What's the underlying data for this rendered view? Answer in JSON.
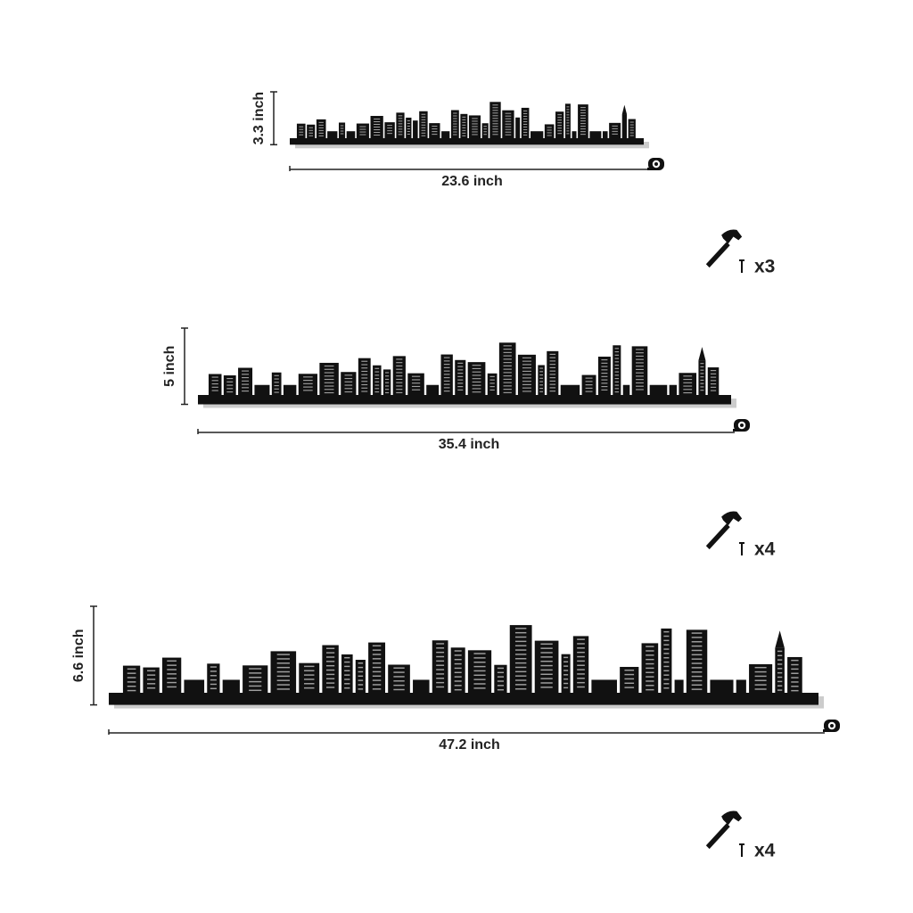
{
  "variants": [
    {
      "height": "3.3 inch",
      "width": "23.6 inch",
      "nails": "x3"
    },
    {
      "height": "5 inch",
      "width": "35.4 inch",
      "nails": "x4"
    },
    {
      "height": "6.6 inch",
      "width": "47.2 inch",
      "nails": "x4"
    }
  ]
}
